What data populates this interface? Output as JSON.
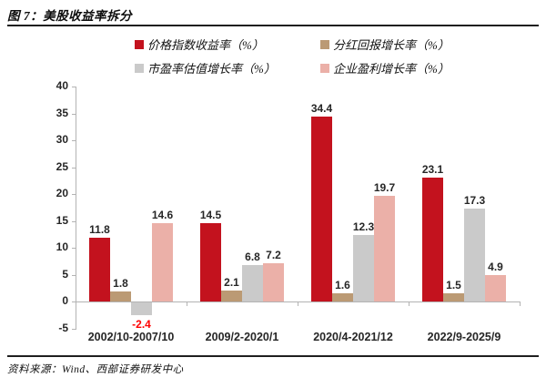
{
  "header": {
    "title": "图 7：美股收益率拆分"
  },
  "footer": {
    "source": "资料来源：Wind、西部证券研发中心"
  },
  "colors": {
    "red": "#C3121E",
    "tan": "#BB9A74",
    "gray": "#CACACA",
    "pink": "#EBB0A8",
    "label": "#262626",
    "negative_label": "#FF0000",
    "axis": "#B3B3B3"
  },
  "chart_data": {
    "type": "bar",
    "title": "美股收益率拆分",
    "categories": [
      "2002/10-2007/10",
      "2009/2-2020/1",
      "2020/4-2021/12",
      "2022/9-2025/9"
    ],
    "series": [
      {
        "name": "价格指数收益率（%）",
        "color_key": "red",
        "values": [
          11.8,
          14.5,
          34.4,
          23.1
        ]
      },
      {
        "name": "分红回报增长率（%）",
        "color_key": "tan",
        "values": [
          1.8,
          2.1,
          1.6,
          1.5
        ]
      },
      {
        "name": "市盈率估值增长率（%）",
        "color_key": "gray",
        "values": [
          -2.4,
          6.8,
          12.3,
          17.3
        ]
      },
      {
        "name": "企业盈利增长率（%）",
        "color_key": "pink",
        "values": [
          14.6,
          7.2,
          19.7,
          4.9
        ]
      }
    ],
    "yticks": [
      40,
      35,
      30,
      25,
      20,
      15,
      10,
      5,
      0,
      -5
    ],
    "ylim": [
      -5,
      40
    ],
    "grid": false,
    "legend_position": "top",
    "value_labels": true
  }
}
